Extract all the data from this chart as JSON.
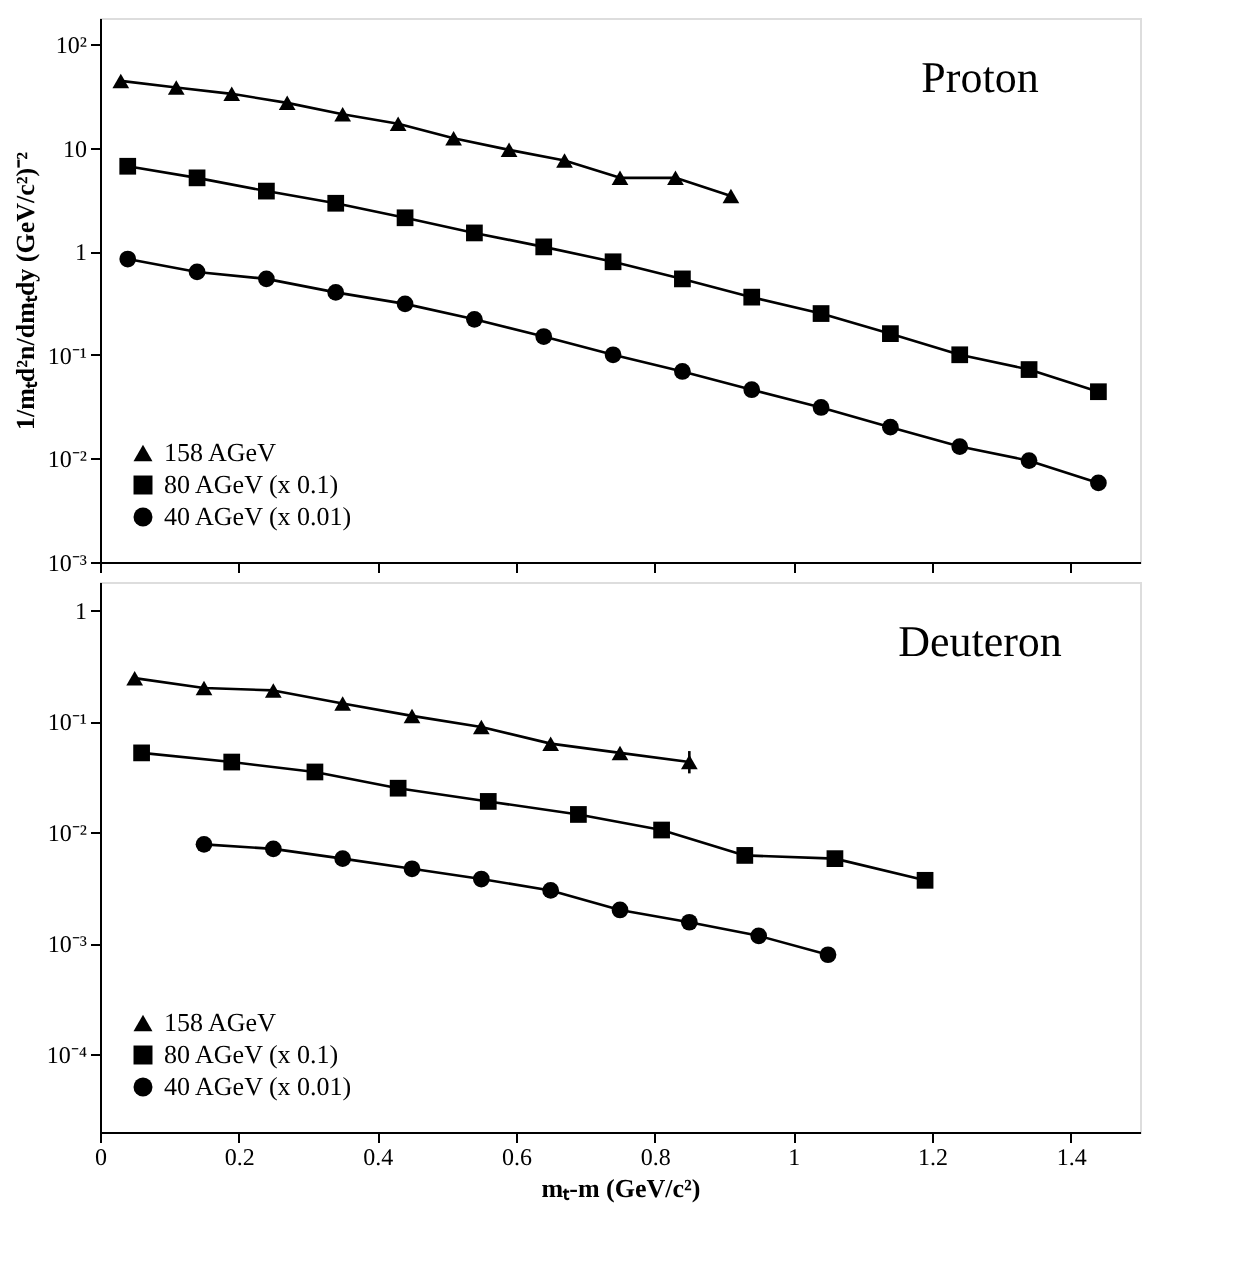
{
  "chart_data": [
    {
      "type": "line",
      "title": "Proton",
      "ylabel": "1/mₜd²n/dmₜdy (GeV/c²)⁻²",
      "log": "y",
      "grid": false,
      "legend": "bottom left",
      "tick_labels": "y",
      "xlim": [
        0,
        1.5
      ],
      "xticks": [
        {
          "value": 0,
          "label": null
        },
        {
          "value": 0.2,
          "label": null
        },
        {
          "value": 0.4,
          "label": null
        },
        {
          "value": 0.6,
          "label": null
        },
        {
          "value": 0.8,
          "label": null
        },
        {
          "value": 1,
          "label": null
        },
        {
          "value": 1.2,
          "label": null
        },
        {
          "value": 1.4,
          "label": null
        }
      ],
      "ylim": [
        0.001,
        178
      ],
      "yticks": [
        {
          "value": 0.001,
          "label": "10⁻³"
        },
        {
          "value": 0.01,
          "label": "10⁻²"
        },
        {
          "value": 0.1,
          "label": "10⁻¹"
        },
        {
          "value": 1,
          "label": "1"
        },
        {
          "value": 10,
          "label": "10"
        },
        {
          "value": 100,
          "label": "10²"
        }
      ],
      "series": [
        {
          "name": "158 AGeV",
          "color": "#000000",
          "marker": "triangle",
          "x": [
            0.03,
            0.11,
            0.19,
            0.27,
            0.35,
            0.43,
            0.51,
            0.59,
            0.67,
            0.75,
            0.83,
            0.91
          ],
          "values": [
            44,
            38,
            33,
            27,
            21,
            17,
            12.3,
            9.5,
            7.5,
            5.1,
            5.1,
            3.4
          ]
        },
        {
          "name": "80 AGeV (x 0.1)",
          "color": "#000000",
          "marker": "square",
          "x": [
            0.04,
            0.14,
            0.24,
            0.34,
            0.44,
            0.54,
            0.64,
            0.74,
            0.84,
            0.94,
            1.04,
            1.14,
            1.24,
            1.34,
            1.44
          ],
          "values": [
            6.6,
            5.1,
            3.8,
            2.9,
            2.1,
            1.5,
            1.1,
            0.79,
            0.54,
            0.36,
            0.25,
            0.16,
            0.1,
            0.072,
            0.044
          ]
        },
        {
          "name": "40 AGeV (x 0.01)",
          "color": "#000000",
          "marker": "circle",
          "x": [
            0.04,
            0.14,
            0.24,
            0.34,
            0.44,
            0.54,
            0.64,
            0.74,
            0.84,
            0.94,
            1.04,
            1.14,
            1.24,
            1.34,
            1.44
          ],
          "values": [
            0.84,
            0.63,
            0.54,
            0.4,
            0.31,
            0.22,
            0.15,
            0.1,
            0.069,
            0.046,
            0.031,
            0.02,
            0.013,
            0.0095,
            0.0058
          ]
        }
      ]
    },
    {
      "type": "line",
      "title": "Deuteron",
      "xlabel": "mₜ-m (GeV/c²)",
      "log": "y",
      "grid": false,
      "legend": "bottom left",
      "xlim": [
        0,
        1.5
      ],
      "xticks": [
        0,
        0.2,
        0.4,
        0.6,
        0.8,
        1,
        1.2,
        1.4
      ],
      "ylim": [
        2e-05,
        1.8
      ],
      "yticks": [
        {
          "value": 0.0001,
          "label": "10⁻⁴"
        },
        {
          "value": 0.001,
          "label": "10⁻³"
        },
        {
          "value": 0.01,
          "label": "10⁻²"
        },
        {
          "value": 0.1,
          "label": "10⁻¹"
        },
        {
          "value": 1,
          "label": "1"
        }
      ],
      "series": [
        {
          "name": "158 AGeV",
          "color": "#000000",
          "marker": "triangle",
          "x": [
            0.05,
            0.15,
            0.25,
            0.35,
            0.45,
            0.55,
            0.65,
            0.75,
            0.85
          ],
          "values": [
            0.245,
            0.2,
            0.19,
            0.145,
            0.112,
            0.089,
            0.063,
            0.052,
            0.043
          ],
          "errors": [
            null,
            null,
            null,
            null,
            null,
            null,
            null,
            null,
            [
              0.034,
              0.054
            ]
          ]
        },
        {
          "name": "80 AGeV (x 0.1)",
          "color": "#000000",
          "marker": "square",
          "x": [
            0.06,
            0.19,
            0.31,
            0.43,
            0.56,
            0.69,
            0.81,
            0.93,
            1.06,
            1.19
          ],
          "values": [
            0.052,
            0.043,
            0.035,
            0.025,
            0.019,
            0.0145,
            0.0105,
            0.0062,
            0.0058,
            0.0037
          ]
        },
        {
          "name": "40 AGeV (x 0.01)",
          "color": "#000000",
          "marker": "circle",
          "x": [
            0.15,
            0.25,
            0.35,
            0.45,
            0.55,
            0.65,
            0.75,
            0.85,
            0.95,
            1.05
          ],
          "values": [
            0.0078,
            0.0071,
            0.0058,
            0.0047,
            0.0038,
            0.003,
            0.002,
            0.00155,
            0.00117,
            0.00079
          ]
        }
      ]
    }
  ]
}
